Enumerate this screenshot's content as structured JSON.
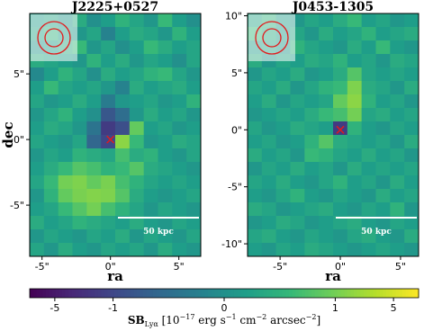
{
  "chart_data": [
    {
      "type": "heatmap",
      "title": "J2225+0527",
      "xlabel": "ra",
      "ylabel": "dec",
      "xlim": [
        -5.9,
        6.6
      ],
      "ylim": [
        -8.9,
        9.6
      ],
      "xticks": [
        {
          "value": -5,
          "label": "-5\""
        },
        {
          "value": 0,
          "label": "0\""
        },
        {
          "value": 5,
          "label": "5\""
        }
      ],
      "yticks": [
        {
          "value": -5,
          "label": "-5\""
        },
        {
          "value": 0,
          "label": "0\""
        },
        {
          "value": 5,
          "label": "5\""
        }
      ],
      "source": {
        "x": 0,
        "y": 0
      },
      "scalebar_label": "50 kpc",
      "z": [
        [
          0.2,
          0.3,
          0.1,
          0.4,
          0.0,
          0.2,
          0.5,
          0.3,
          0.1,
          0.6,
          0.2,
          0.0
        ],
        [
          0.3,
          0.5,
          0.2,
          0.1,
          0.3,
          -0.2,
          0.2,
          0.4,
          0.3,
          0.1,
          0.5,
          0.2
        ],
        [
          0.1,
          0.2,
          0.4,
          0.6,
          0.1,
          0.3,
          0.0,
          0.2,
          0.6,
          0.4,
          0.2,
          0.3
        ],
        [
          0.4,
          0.3,
          0.2,
          0.1,
          0.5,
          0.2,
          0.4,
          0.1,
          0.3,
          0.2,
          0.0,
          0.3
        ],
        [
          -0.1,
          0.2,
          0.5,
          0.3,
          0.0,
          0.4,
          0.2,
          0.3,
          0.5,
          0.6,
          0.3,
          0.1
        ],
        [
          0.2,
          0.6,
          0.3,
          0.2,
          0.3,
          0.1,
          -0.2,
          0.4,
          0.2,
          0.3,
          0.4,
          0.2
        ],
        [
          0.3,
          0.1,
          0.2,
          0.4,
          0.2,
          -0.3,
          0.1,
          0.2,
          0.3,
          0.1,
          0.2,
          0.5
        ],
        [
          0.1,
          0.3,
          0.5,
          0.2,
          0.0,
          -0.8,
          -0.5,
          0.1,
          0.4,
          0.2,
          0.3,
          0.1
        ],
        [
          0.2,
          0.4,
          0.3,
          0.1,
          -0.4,
          -1.5,
          -0.9,
          0.9,
          0.2,
          0.3,
          0.1,
          0.2
        ],
        [
          0.3,
          0.2,
          0.1,
          0.3,
          -0.6,
          -1.0,
          1.5,
          0.6,
          0.1,
          0.2,
          0.4,
          0.3
        ],
        [
          0.1,
          0.3,
          0.2,
          0.5,
          0.4,
          0.3,
          0.7,
          0.4,
          0.5,
          0.2,
          0.1,
          0.3
        ],
        [
          0.2,
          0.4,
          0.6,
          0.8,
          0.7,
          0.5,
          0.6,
          0.8,
          0.4,
          0.3,
          0.2,
          0.1
        ],
        [
          0.3,
          0.6,
          1.0,
          1.2,
          0.9,
          1.1,
          0.7,
          0.5,
          0.3,
          0.2,
          0.3,
          0.2
        ],
        [
          0.1,
          0.5,
          0.9,
          1.1,
          1.3,
          1.2,
          0.8,
          0.4,
          0.2,
          0.1,
          0.2,
          0.3
        ],
        [
          0.2,
          0.3,
          0.6,
          0.8,
          1.0,
          0.7,
          0.5,
          0.3,
          0.1,
          0.3,
          0.2,
          0.1
        ],
        [
          0.4,
          0.2,
          0.3,
          0.5,
          0.4,
          0.3,
          0.2,
          0.4,
          0.2,
          0.1,
          0.3,
          0.2
        ],
        [
          0.1,
          0.3,
          0.2,
          0.1,
          0.3,
          0.2,
          0.4,
          0.1,
          0.3,
          0.2,
          0.1,
          0.3
        ],
        [
          0.3,
          0.1,
          0.4,
          0.2,
          0.1,
          0.3,
          0.2,
          0.3,
          0.1,
          0.4,
          0.2,
          0.1
        ]
      ]
    },
    {
      "type": "heatmap",
      "title": "J0453-1305",
      "xlabel": "ra",
      "xlim": [
        -7.7,
        6.5
      ],
      "ylim": [
        -11.1,
        10.2
      ],
      "xticks": [
        {
          "value": -5,
          "label": "-5\""
        },
        {
          "value": 0,
          "label": "0\""
        },
        {
          "value": 5,
          "label": "5\""
        }
      ],
      "yticks": [
        {
          "value": -10,
          "label": "-10\""
        },
        {
          "value": -5,
          "label": "-5\""
        },
        {
          "value": 0,
          "label": "0\""
        },
        {
          "value": 5,
          "label": "5\""
        },
        {
          "value": 10,
          "label": "10\""
        }
      ],
      "source": {
        "x": 0,
        "y": 0
      },
      "scalebar_label": "50 kpc",
      "z": [
        [
          0.3,
          0.5,
          0.2,
          0.1,
          0.3,
          0.2,
          0.4,
          0.6,
          0.2,
          0.3,
          0.1,
          0.2
        ],
        [
          0.6,
          0.4,
          0.2,
          0.3,
          0.1,
          0.4,
          0.2,
          0.3,
          0.5,
          0.2,
          0.3,
          0.4
        ],
        [
          0.2,
          0.3,
          0.1,
          0.5,
          0.3,
          0.2,
          0.1,
          0.4,
          0.2,
          0.6,
          0.2,
          0.1
        ],
        [
          0.4,
          0.1,
          0.3,
          0.2,
          0.4,
          0.3,
          0.5,
          0.2,
          0.3,
          0.1,
          0.4,
          0.3
        ],
        [
          0.1,
          0.3,
          0.2,
          0.4,
          0.1,
          0.2,
          0.4,
          0.8,
          0.3,
          0.2,
          0.3,
          0.2
        ],
        [
          0.3,
          0.2,
          0.4,
          0.1,
          0.3,
          0.5,
          0.6,
          1.2,
          0.4,
          0.3,
          0.1,
          0.4
        ],
        [
          0.2,
          0.4,
          0.1,
          0.3,
          0.2,
          0.3,
          0.9,
          1.5,
          0.5,
          0.2,
          0.3,
          0.1
        ],
        [
          0.1,
          0.2,
          0.3,
          0.2,
          0.4,
          0.6,
          0.7,
          1.0,
          0.3,
          0.4,
          0.2,
          0.3
        ],
        [
          0.3,
          0.1,
          0.2,
          0.4,
          0.3,
          0.2,
          -1.5,
          0.5,
          0.2,
          0.1,
          0.3,
          0.2
        ],
        [
          0.2,
          0.3,
          0.1,
          0.2,
          0.5,
          0.8,
          0.4,
          0.3,
          0.2,
          0.3,
          0.1,
          0.4
        ],
        [
          0.4,
          0.2,
          0.3,
          0.1,
          0.6,
          0.5,
          0.3,
          0.2,
          0.4,
          0.2,
          0.3,
          0.1
        ],
        [
          0.1,
          0.3,
          0.2,
          0.4,
          0.2,
          0.3,
          0.1,
          0.4,
          0.2,
          0.3,
          0.2,
          0.3
        ],
        [
          0.3,
          0.2,
          0.4,
          0.2,
          0.1,
          0.3,
          0.5,
          0.2,
          0.3,
          0.1,
          0.4,
          0.2
        ],
        [
          0.2,
          0.1,
          0.3,
          0.5,
          0.2,
          0.1,
          0.3,
          0.2,
          0.1,
          0.4,
          0.2,
          0.3
        ],
        [
          0.4,
          0.3,
          0.1,
          0.2,
          0.3,
          0.4,
          0.2,
          0.1,
          0.3,
          0.2,
          0.5,
          0.1
        ],
        [
          0.1,
          0.2,
          0.4,
          0.3,
          0.1,
          0.2,
          0.3,
          0.4,
          0.2,
          0.1,
          0.3,
          0.2
        ],
        [
          0.3,
          0.4,
          0.2,
          0.1,
          0.3,
          0.2,
          0.1,
          0.3,
          0.4,
          0.2,
          0.1,
          0.4
        ],
        [
          0.2,
          0.1,
          0.3,
          0.2,
          0.4,
          0.3,
          0.2,
          0.1,
          0.2,
          0.3,
          0.2,
          0.1
        ]
      ]
    }
  ],
  "colorbar": {
    "colormap": "viridis",
    "scale": "symlog",
    "clim": [
      -10,
      10
    ],
    "ticks": [
      -5,
      -1,
      0,
      1,
      5
    ],
    "label": [
      "SB",
      "Lyα",
      " [10",
      "−17",
      " erg s",
      "−1",
      " cm",
      "−2",
      " arcsec",
      "−2",
      "]"
    ]
  }
}
